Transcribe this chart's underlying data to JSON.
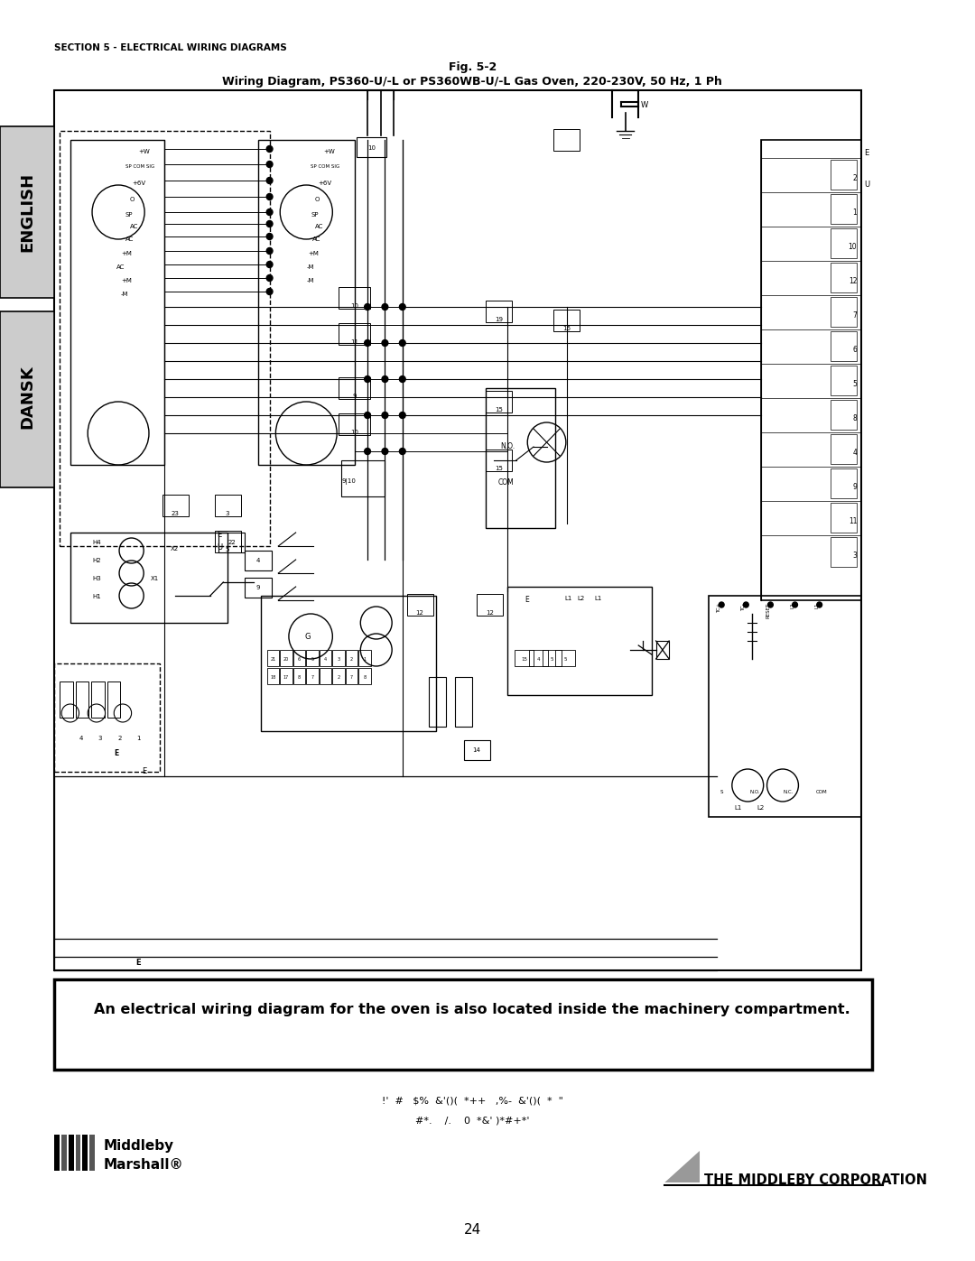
{
  "page_width": 10.8,
  "page_height": 13.97,
  "bg_color": "#ffffff",
  "section_label": "SECTION 5 - ELECTRICAL WIRING DIAGRAMS",
  "fig_title_line1": "Fig. 5-2",
  "fig_title_line2": "Wiring Diagram, PS360-U/-L or PS360WB-U/-L Gas Oven, 220-230V, 50 Hz, 1 Ph",
  "notice_text": "An electrical wiring diagram for the oven is also located inside the machinery compartment.",
  "page_number": "24",
  "encoded_line1": "!'  #   $%  &'()(  *++   ,%-  &'()(  *  \"",
  "encoded_line2": "#*.    /.    0  *&' )*#+*'",
  "middleby_logo_text1": "Middleby",
  "middleby_logo_text2": "Marshall®",
  "corp_text": "THE MIDDLEBY CORPORATION",
  "tab_color": "#cccccc",
  "lc": "#000000"
}
